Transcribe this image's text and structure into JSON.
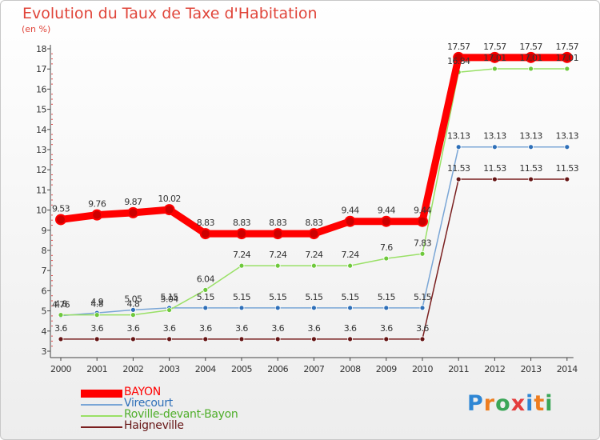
{
  "chart_data": {
    "type": "line",
    "title": "Evolution du Taux de Taxe d'Habitation",
    "ylabel": "(en %)",
    "x": [
      "2000",
      "2001",
      "2002",
      "2003",
      "2004",
      "2005",
      "2006",
      "2007",
      "2008",
      "2009",
      "2010",
      "2011",
      "2012",
      "2013",
      "2014"
    ],
    "ylim": [
      3,
      18
    ],
    "yticks": [
      3,
      4,
      5,
      6,
      7,
      8,
      9,
      10,
      11,
      12,
      13,
      14,
      15,
      16,
      17,
      18
    ],
    "grid": false,
    "legend_position": "bottom-left",
    "series": [
      {
        "name": "BAYON",
        "color": "#ff0000",
        "marker": "#cc0000",
        "values": [
          9.53,
          9.76,
          9.87,
          10.02,
          8.83,
          8.83,
          8.83,
          8.83,
          9.44,
          9.44,
          9.44,
          17.57,
          17.57,
          17.57,
          17.57
        ],
        "labels": [
          "9.53",
          "9.76",
          "9.87",
          "10.02",
          "8.83",
          "8.83",
          "8.83",
          "8.83",
          "9.44",
          "9.44",
          "9.44",
          "17.57",
          "17.57",
          "17.57",
          "17.57"
        ]
      },
      {
        "name": "Virecourt",
        "color": "#7aa6d6",
        "marker": "#2e6fb8",
        "values": [
          4.76,
          4.9,
          5.05,
          5.15,
          5.15,
          5.15,
          5.15,
          5.15,
          5.15,
          5.15,
          5.15,
          13.13,
          13.13,
          13.13,
          13.13
        ],
        "labels": [
          "4.76",
          "4.9",
          "5.05",
          "5.15",
          "5.15",
          "5.15",
          "5.15",
          "5.15",
          "5.15",
          "5.15",
          "5.15",
          "13.13",
          "13.13",
          "13.13",
          "13.13"
        ]
      },
      {
        "name": "Roville-devant-Bayon",
        "color": "#99e066",
        "marker": "#6ec83c",
        "values": [
          4.8,
          4.8,
          4.8,
          5.04,
          6.04,
          7.24,
          7.24,
          7.24,
          7.24,
          7.6,
          7.83,
          16.84,
          17.01,
          17.01,
          17.01
        ],
        "labels": [
          "4.8",
          "4.8",
          "4.8",
          "5.04",
          "6.04",
          "7.24",
          "7.24",
          "7.24",
          "7.24",
          "7.6",
          "7.83",
          "16.84",
          "17.01",
          "17.01",
          "17.01"
        ]
      },
      {
        "name": "Haigneville",
        "color": "#7a1f1f",
        "marker": "#661515",
        "values": [
          3.6,
          3.6,
          3.6,
          3.6,
          3.6,
          3.6,
          3.6,
          3.6,
          3.6,
          3.6,
          3.6,
          11.53,
          11.53,
          11.53,
          11.53
        ],
        "labels": [
          "3.6",
          "3.6",
          "3.6",
          "3.6",
          "3.6",
          "3.6",
          "3.6",
          "3.6",
          "3.6",
          "3.6",
          "3.6",
          "11.53",
          "11.53",
          "11.53",
          "11.53"
        ]
      }
    ]
  },
  "logo": {
    "text": "Proxiti",
    "colors": [
      "#2e86d4",
      "#ee7d1f",
      "#3aa657",
      "#e43d3d",
      "#2e86d4",
      "#ee7d1f",
      "#3aa657"
    ]
  }
}
